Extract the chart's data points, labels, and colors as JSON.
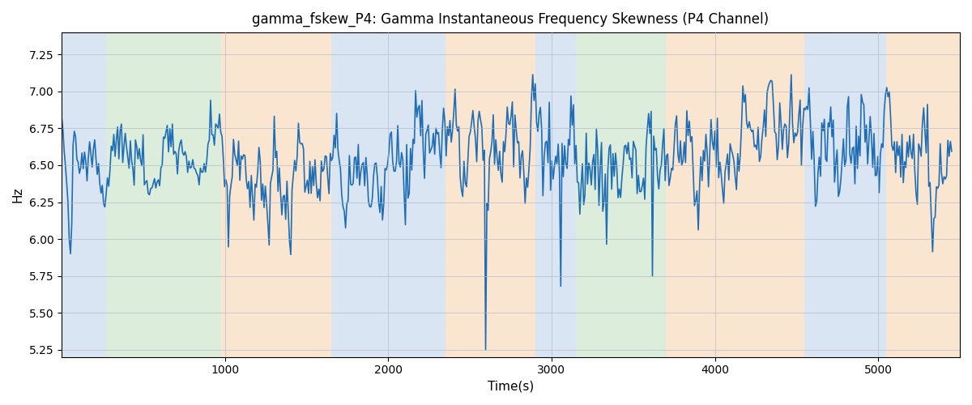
{
  "title": "gamma_fskew_P4: Gamma Instantaneous Frequency Skewness (P4 Channel)",
  "xlabel": "Time(s)",
  "ylabel": "Hz",
  "xlim": [
    0,
    5500
  ],
  "ylim": [
    5.2,
    7.4
  ],
  "line_color": "#1f6eb5",
  "line_width": 1.2,
  "regions": [
    {
      "start": 0,
      "end": 275,
      "color": "#aec6e8",
      "alpha": 0.45
    },
    {
      "start": 275,
      "end": 975,
      "color": "#b2d8b2",
      "alpha": 0.45
    },
    {
      "start": 975,
      "end": 1650,
      "color": "#f5c897",
      "alpha": 0.45
    },
    {
      "start": 1650,
      "end": 2350,
      "color": "#aec6e8",
      "alpha": 0.45
    },
    {
      "start": 2350,
      "end": 2900,
      "color": "#f5c897",
      "alpha": 0.45
    },
    {
      "start": 2900,
      "end": 3100,
      "color": "#aec6e8",
      "alpha": 0.45
    },
    {
      "start": 3100,
      "end": 3150,
      "color": "#aec6e8",
      "alpha": 0.45
    },
    {
      "start": 3150,
      "end": 3700,
      "color": "#b2d8b2",
      "alpha": 0.45
    },
    {
      "start": 3700,
      "end": 3850,
      "color": "#f5c897",
      "alpha": 0.45
    },
    {
      "start": 3850,
      "end": 4550,
      "color": "#f5c897",
      "alpha": 0.45
    },
    {
      "start": 4550,
      "end": 5050,
      "color": "#aec6e8",
      "alpha": 0.45
    },
    {
      "start": 5050,
      "end": 5500,
      "color": "#f5c897",
      "alpha": 0.45
    }
  ],
  "n_points": 700,
  "yticks": [
    5.25,
    5.5,
    5.75,
    6.0,
    6.25,
    6.5,
    6.75,
    7.0,
    7.25
  ],
  "xticks": [
    1000,
    2000,
    3000,
    4000,
    5000
  ],
  "figsize": [
    12.0,
    5.0
  ],
  "dpi": 100
}
